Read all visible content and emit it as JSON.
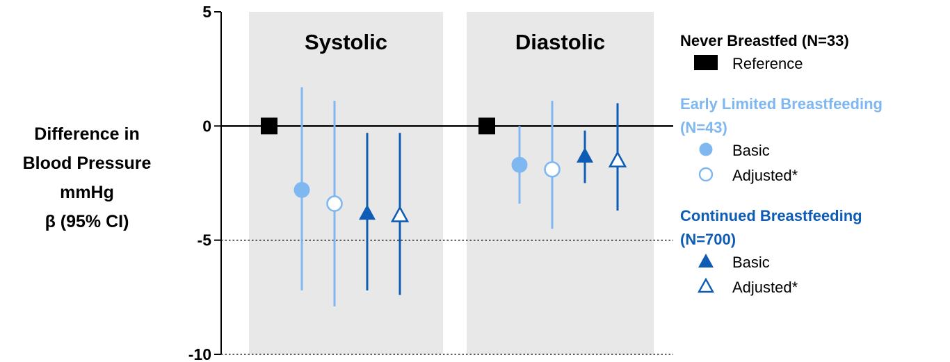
{
  "chart_data": {
    "type": "scatter",
    "title": "",
    "ylabel_lines": [
      "Difference in",
      "Blood Pressure",
      "mmHg",
      "β (95% CI)"
    ],
    "yticks": [
      5,
      0,
      -5,
      -10
    ],
    "ylim": [
      -10,
      5
    ],
    "panels": [
      {
        "label": "Systolic",
        "points": [
          {
            "group": "never",
            "style": "reference",
            "y": 0,
            "lo": 0,
            "hi": 0
          },
          {
            "group": "early",
            "style": "basic",
            "y": -2.8,
            "lo": -7.2,
            "hi": 1.7
          },
          {
            "group": "early",
            "style": "adjusted",
            "y": -3.4,
            "lo": -7.9,
            "hi": 1.1
          },
          {
            "group": "continued",
            "style": "basic",
            "y": -3.8,
            "lo": -7.2,
            "hi": -0.3
          },
          {
            "group": "continued",
            "style": "adjusted",
            "y": -3.9,
            "lo": -7.4,
            "hi": -0.3
          }
        ]
      },
      {
        "label": "Diastolic",
        "points": [
          {
            "group": "never",
            "style": "reference",
            "y": 0,
            "lo": 0,
            "hi": 0
          },
          {
            "group": "early",
            "style": "basic",
            "y": -1.7,
            "lo": -3.4,
            "hi": 0.0
          },
          {
            "group": "early",
            "style": "adjusted",
            "y": -1.9,
            "lo": -4.5,
            "hi": 1.1
          },
          {
            "group": "continued",
            "style": "basic",
            "y": -1.3,
            "lo": -2.5,
            "hi": -0.2
          },
          {
            "group": "continued",
            "style": "adjusted",
            "y": -1.5,
            "lo": -3.7,
            "hi": 1.0
          }
        ]
      }
    ],
    "legend": [
      {
        "title_lines": [
          "Never Breastfed (N=33)"
        ],
        "color": "#000000",
        "items": [
          {
            "marker": "square",
            "label": "Reference"
          }
        ]
      },
      {
        "title_lines": [
          "Early Limited Breastfeeding",
          "(N=43)"
        ],
        "color": "#7fb8f0",
        "items": [
          {
            "marker": "circle-filled",
            "label": "Basic"
          },
          {
            "marker": "circle-open",
            "label": "Adjusted*"
          }
        ]
      },
      {
        "title_lines": [
          "Continued Breastfeeding",
          "(N=700)"
        ],
        "color": "#0f5cb5",
        "items": [
          {
            "marker": "triangle-filled",
            "label": "Basic"
          },
          {
            "marker": "triangle-open",
            "label": "Adjusted*"
          }
        ]
      }
    ],
    "colors": {
      "never": "#000000",
      "early": "#7fb8f0",
      "continued": "#0f5cb5",
      "panel_bg": "#e8e8e8"
    }
  }
}
